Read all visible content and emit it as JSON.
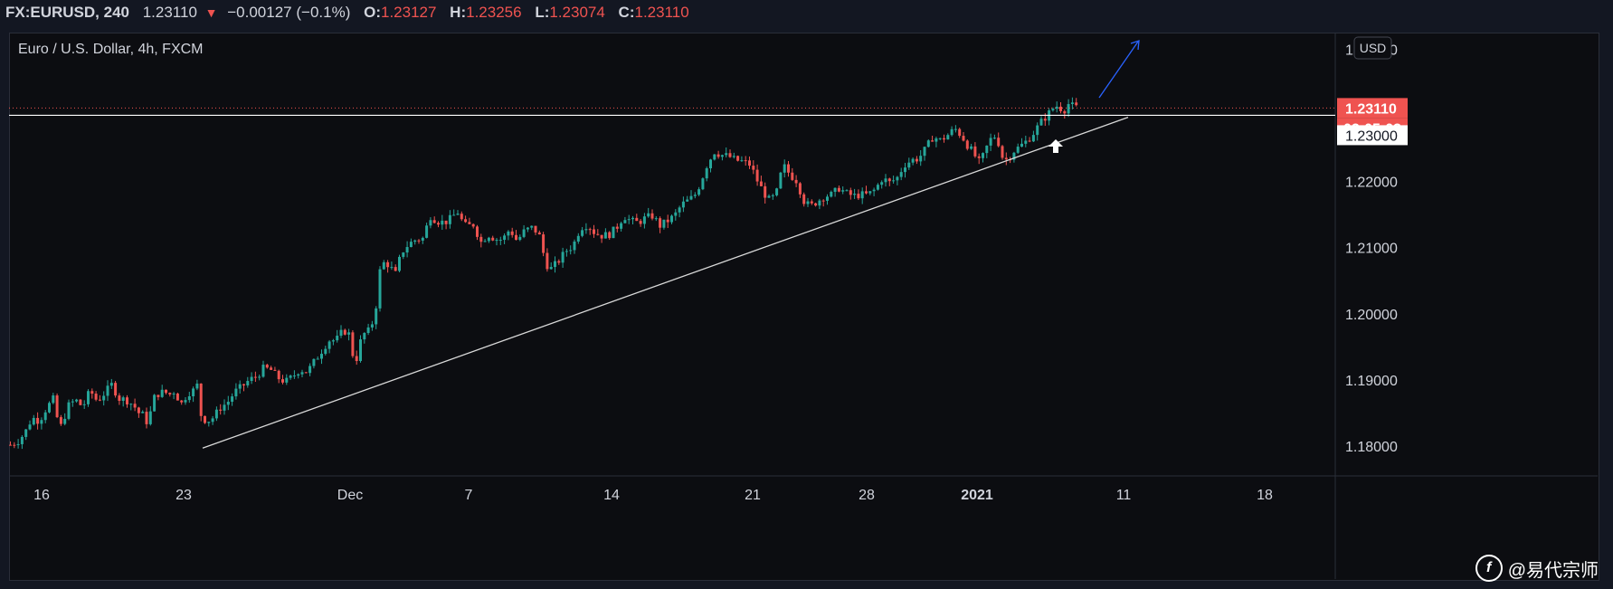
{
  "header": {
    "symbol": "FX:EURUSD, 240",
    "last": "1.23110",
    "change": "−0.00127 (−0.1%)",
    "o_label": "O:",
    "o_value": "1.23127",
    "h_label": "H:",
    "h_value": "1.23256",
    "l_label": "L:",
    "l_value": "1.23074",
    "c_label": "C:",
    "c_value": "1.23110"
  },
  "chart_data": {
    "type": "candlestick",
    "title": "Euro / U.S. Dollar, 4h, FXCM",
    "currency": "USD",
    "ylim": [
      1.1755,
      1.2425
    ],
    "y_ticks": [
      "1.24000",
      "1.22000",
      "1.21000",
      "1.20000",
      "1.19000",
      "1.18000"
    ],
    "x_ticks": [
      "16",
      "23",
      "Dec",
      "7",
      "14",
      "21",
      "28",
      "2021",
      "11",
      "18"
    ],
    "price_label": "1.23110",
    "countdown_label": "02:05:03",
    "hline_label": "1.23000",
    "hline_value": 1.23,
    "last_price": 1.2311,
    "trendline": {
      "from": [
        "23",
        1.1797
      ],
      "to": [
        "11",
        1.2297
      ]
    },
    "arrow_up_marker": {
      "x": "2021",
      "note": "white up arrow"
    },
    "forecast_arrow": {
      "color": "#2962ff"
    },
    "colors": {
      "up": "#26a69a",
      "down": "#ef5350",
      "bg": "#0c0d11",
      "axis_text": "#d1d4dc"
    },
    "path": [
      [
        0,
        1.1802
      ],
      [
        8,
        1.1807
      ],
      [
        16,
        1.182
      ],
      [
        24,
        1.1843
      ],
      [
        32,
        1.1838
      ],
      [
        40,
        1.1858
      ],
      [
        48,
        1.1872
      ],
      [
        52,
        1.184
      ],
      [
        56,
        1.183
      ],
      [
        64,
        1.1861
      ],
      [
        72,
        1.187
      ],
      [
        80,
        1.1859
      ],
      [
        88,
        1.1884
      ],
      [
        96,
        1.1868
      ],
      [
        104,
        1.188
      ],
      [
        112,
        1.1893
      ],
      [
        120,
        1.1872
      ],
      [
        128,
        1.187
      ],
      [
        136,
        1.1862
      ],
      [
        142,
        1.185
      ],
      [
        148,
        1.1846
      ],
      [
        152,
        1.1832
      ],
      [
        158,
        1.1872
      ],
      [
        164,
        1.188
      ],
      [
        170,
        1.1882
      ],
      [
        176,
        1.1878
      ],
      [
        182,
        1.1884
      ],
      [
        188,
        1.1862
      ],
      [
        196,
        1.188
      ],
      [
        202,
        1.1884
      ],
      [
        207,
        1.1893
      ],
      [
        210,
        1.185
      ],
      [
        212,
        1.1842
      ],
      [
        218,
        1.1838
      ],
      [
        224,
        1.1843
      ],
      [
        232,
        1.1858
      ],
      [
        240,
        1.1866
      ],
      [
        248,
        1.1882
      ],
      [
        256,
        1.189
      ],
      [
        264,
        1.19
      ],
      [
        272,
        1.1905
      ],
      [
        280,
        1.1918
      ],
      [
        288,
        1.1915
      ],
      [
        296,
        1.1903
      ],
      [
        304,
        1.1897
      ],
      [
        312,
        1.1905
      ],
      [
        320,
        1.1916
      ],
      [
        328,
        1.1912
      ],
      [
        336,
        1.1928
      ],
      [
        344,
        1.1944
      ],
      [
        352,
        1.196
      ],
      [
        360,
        1.196
      ],
      [
        368,
        1.1975
      ],
      [
        374,
        1.197
      ],
      [
        378,
        1.194
      ],
      [
        382,
        1.1928
      ],
      [
        386,
        1.1955
      ],
      [
        392,
        1.1972
      ],
      [
        398,
        1.1975
      ],
      [
        404,
        1.201
      ],
      [
        408,
        1.2063
      ],
      [
        414,
        1.208
      ],
      [
        420,
        1.207
      ],
      [
        426,
        1.206
      ],
      [
        432,
        1.2092
      ],
      [
        440,
        1.2105
      ],
      [
        448,
        1.2112
      ],
      [
        456,
        1.2114
      ],
      [
        464,
        1.2148
      ],
      [
        472,
        1.214
      ],
      [
        480,
        1.2138
      ],
      [
        488,
        1.2145
      ],
      [
        494,
        1.2155
      ],
      [
        500,
        1.2138
      ],
      [
        504,
        1.2132
      ],
      [
        512,
        1.2135
      ],
      [
        520,
        1.2108
      ],
      [
        528,
        1.212
      ],
      [
        536,
        1.2113
      ],
      [
        544,
        1.2112
      ],
      [
        552,
        1.2128
      ],
      [
        560,
        1.211
      ],
      [
        568,
        1.2125
      ],
      [
        576,
        1.213
      ],
      [
        584,
        1.2122
      ],
      [
        592,
        1.2075
      ],
      [
        598,
        1.2068
      ],
      [
        606,
        1.208
      ],
      [
        614,
        1.2095
      ],
      [
        622,
        1.2103
      ],
      [
        630,
        1.213
      ],
      [
        638,
        1.2135
      ],
      [
        646,
        1.2122
      ],
      [
        654,
        1.2118
      ],
      [
        662,
        1.212
      ],
      [
        670,
        1.213
      ],
      [
        678,
        1.2148
      ],
      [
        686,
        1.214
      ],
      [
        694,
        1.2138
      ],
      [
        702,
        1.2145
      ],
      [
        710,
        1.2148
      ],
      [
        718,
        1.2133
      ],
      [
        726,
        1.214
      ],
      [
        734,
        1.2148
      ],
      [
        742,
        1.2165
      ],
      [
        750,
        1.2172
      ],
      [
        756,
        1.2178
      ],
      [
        762,
        1.2195
      ],
      [
        770,
        1.2225
      ],
      [
        778,
        1.2245
      ],
      [
        786,
        1.224
      ],
      [
        794,
        1.2238
      ],
      [
        802,
        1.2232
      ],
      [
        810,
        1.223
      ],
      [
        818,
        1.2225
      ],
      [
        826,
        1.22
      ],
      [
        832,
        1.2185
      ],
      [
        838,
        1.2172
      ],
      [
        846,
        1.2178
      ],
      [
        854,
        1.2225
      ],
      [
        862,
        1.221
      ],
      [
        870,
        1.22
      ],
      [
        876,
        1.2172
      ],
      [
        884,
        1.2162
      ],
      [
        892,
        1.217
      ],
      [
        900,
        1.2178
      ],
      [
        908,
        1.218
      ],
      [
        916,
        1.219
      ],
      [
        924,
        1.2182
      ],
      [
        932,
        1.2178
      ],
      [
        940,
        1.218
      ],
      [
        948,
        1.218
      ],
      [
        956,
        1.2188
      ],
      [
        964,
        1.2205
      ],
      [
        972,
        1.2198
      ],
      [
        980,
        1.2205
      ],
      [
        988,
        1.2225
      ],
      [
        996,
        1.2232
      ],
      [
        1004,
        1.2235
      ],
      [
        1012,
        1.225
      ],
      [
        1020,
        1.2268
      ],
      [
        1028,
        1.2262
      ],
      [
        1036,
        1.227
      ],
      [
        1044,
        1.228
      ],
      [
        1052,
        1.2268
      ],
      [
        1060,
        1.225
      ],
      [
        1064,
        1.2245
      ],
      [
        1070,
        1.2228
      ],
      [
        1076,
        1.224
      ],
      [
        1082,
        1.2262
      ],
      [
        1090,
        1.227
      ],
      [
        1096,
        1.2238
      ],
      [
        1102,
        1.2232
      ],
      [
        1108,
        1.2245
      ],
      [
        1116,
        1.2253
      ],
      [
        1124,
        1.2262
      ],
      [
        1132,
        1.2275
      ],
      [
        1138,
        1.2288
      ],
      [
        1146,
        1.23
      ],
      [
        1152,
        1.231
      ],
      [
        1158,
        1.2315
      ],
      [
        1164,
        1.2306
      ],
      [
        1170,
        1.2318
      ],
      [
        1176,
        1.2312
      ],
      [
        1182,
        1.2311
      ]
    ]
  }
}
